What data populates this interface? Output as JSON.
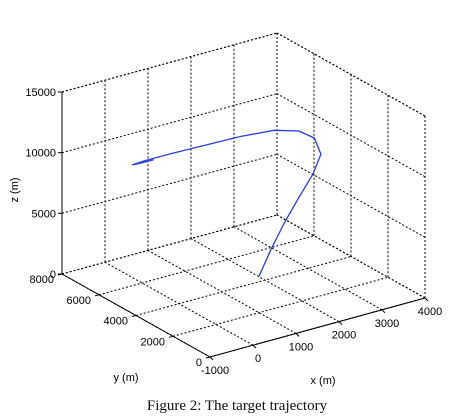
{
  "chart_data": {
    "type": "line3d",
    "xlabel": "x (m)",
    "ylabel": "y (m)",
    "zlabel": "z (m)",
    "xlim": [
      -1000,
      4000
    ],
    "ylim": [
      0,
      8000
    ],
    "zlim": [
      0,
      15000
    ],
    "x_ticks": [
      -1000,
      0,
      1000,
      2000,
      3000,
      4000
    ],
    "y_ticks": [
      0,
      2000,
      4000,
      6000,
      8000
    ],
    "z_ticks": [
      0,
      5000,
      10000,
      15000
    ],
    "grid": true,
    "series": [
      {
        "color": "#2b3fd6",
        "x": [
          1000,
          1400,
          1900,
          2400,
          2900,
          3300,
          3450,
          3300,
          2900,
          2200,
          1400,
          700,
          100,
          -200,
          -150,
          250
        ],
        "y": [
          2000,
          2300,
          2700,
          3100,
          3500,
          4000,
          4700,
          5200,
          5600,
          5800,
          5900,
          6000,
          6050,
          6050,
          6000,
          5950
        ],
        "z": [
          3000,
          4500,
          6000,
          7200,
          8300,
          9100,
          9700,
          10000,
          10100,
          10100,
          10050,
          10000,
          9950,
          9900,
          9920,
          9950
        ]
      }
    ]
  },
  "caption": "Figure 2: The target trajectory"
}
